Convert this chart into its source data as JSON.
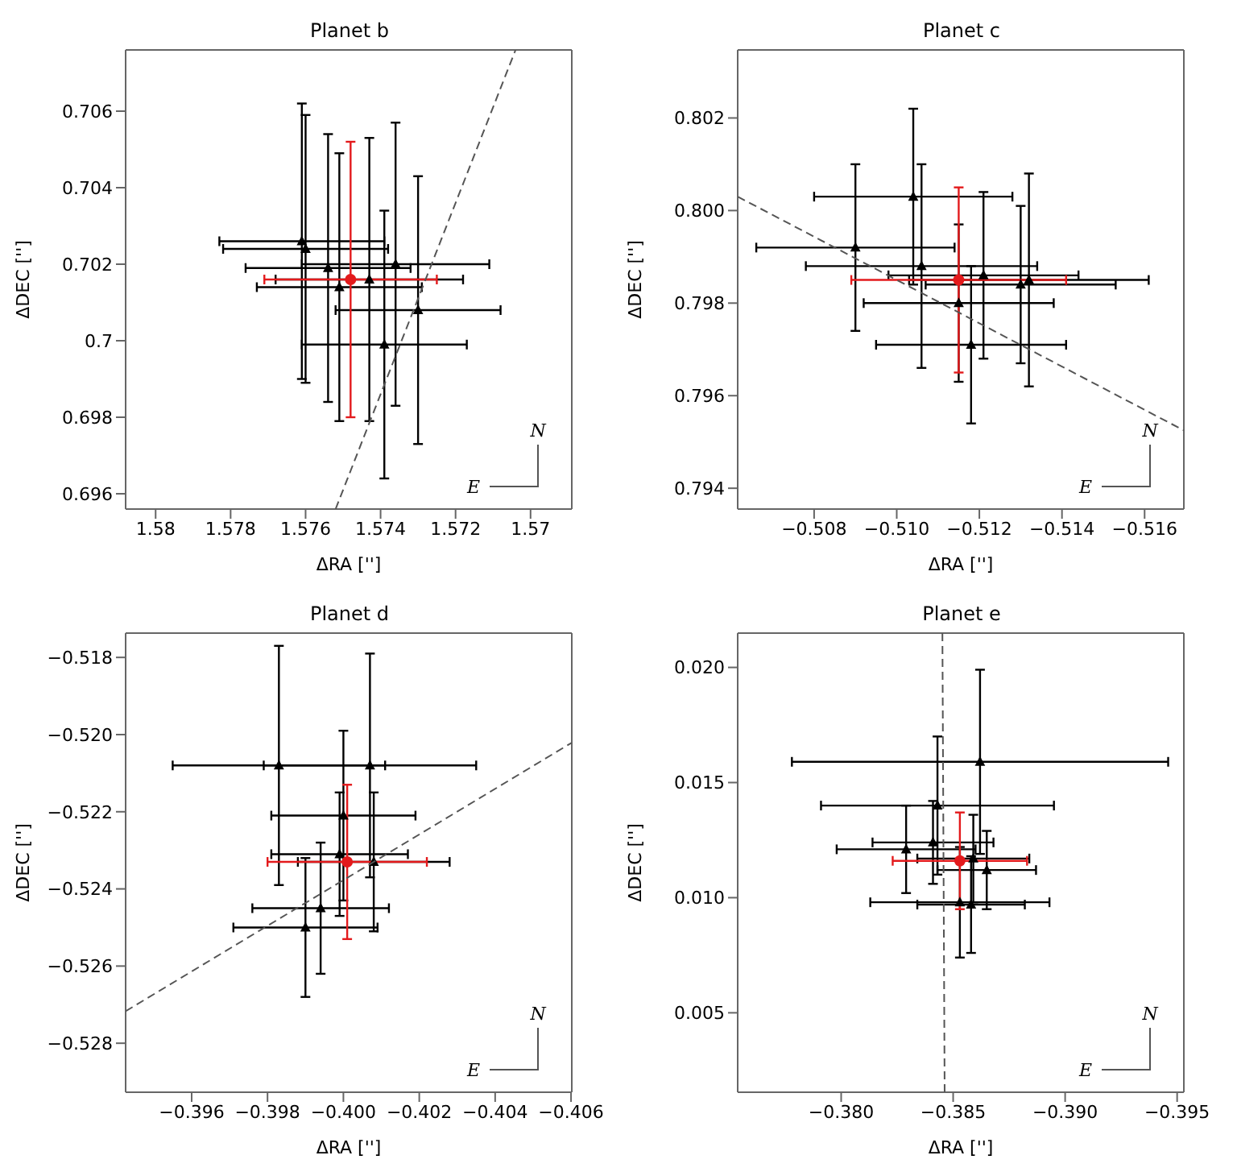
{
  "chart_data": [
    {
      "type": "scatter",
      "title": "Planet b",
      "xlabel": "ΔRA ['']",
      "ylabel": "ΔDEC ['']",
      "xlim": [
        1.5808,
        1.5689
      ],
      "ylim": [
        0.6956,
        0.7076
      ],
      "xticks": [
        1.58,
        1.578,
        1.576,
        1.574,
        1.572,
        1.57
      ],
      "yticks": [
        0.696,
        0.698,
        0.7,
        0.702,
        0.704,
        0.706
      ],
      "grid": false,
      "legend": false,
      "annotations": [
        "N",
        "E"
      ],
      "series": [
        {
          "type": "scatter",
          "color": "#000000",
          "marker": "triangle",
          "x": [
            1.5761,
            1.576,
            1.5754,
            1.5743,
            1.5751,
            1.5736,
            1.573,
            1.5739
          ],
          "values": [
            0.7026,
            0.7024,
            0.7019,
            0.7016,
            0.7014,
            0.702,
            0.7008,
            0.6999
          ],
          "xerrors": [
            0.0022,
            0.0022,
            0.0022,
            0.0025,
            0.0022,
            0.0025,
            0.0022,
            0.0022
          ],
          "errors": [
            0.0036,
            0.0035,
            0.0035,
            0.0037,
            0.0035,
            0.0037,
            0.0035,
            0.0035
          ]
        },
        {
          "type": "scatter",
          "color": "#e31a1c",
          "marker": "circle",
          "x": [
            1.5748
          ],
          "values": [
            0.7016
          ],
          "xerrors": [
            0.0023
          ],
          "errors": [
            0.0036
          ]
        },
        {
          "type": "line",
          "color": "#555555",
          "line_style": "dashed",
          "x": [
            1.5752,
            1.5704
          ],
          "values": [
            0.6956,
            0.7076
          ]
        }
      ]
    },
    {
      "type": "scatter",
      "title": "Planet c",
      "xlabel": "ΔRA ['']",
      "ylabel": "ΔDEC ['']",
      "xlim": [
        -0.50615,
        -0.51695
      ],
      "ylim": [
        0.79355,
        0.80347
      ],
      "xticks": [
        {
          "value": -0.508,
          "label": "−0.508"
        },
        {
          "value": -0.51,
          "label": "−0.510"
        },
        {
          "value": -0.512,
          "label": "−0.512"
        },
        {
          "value": -0.514,
          "label": "−0.514"
        },
        {
          "value": -0.516,
          "label": "−0.516"
        }
      ],
      "yticks": [
        0.794,
        0.796,
        0.798,
        {
          "value": 0.8,
          "label": "0.800"
        },
        0.802
      ],
      "grid": false,
      "legend": false,
      "annotations": [
        "N",
        "E"
      ],
      "series": [
        {
          "type": "scatter",
          "color": "#000000",
          "marker": "triangle",
          "x": [
            -0.509,
            -0.5104,
            -0.5106,
            -0.5115,
            -0.5118,
            -0.5121,
            -0.5132,
            -0.513
          ],
          "values": [
            0.7992,
            0.8003,
            0.7988,
            0.798,
            0.7971,
            0.7986,
            0.7985,
            0.7984
          ],
          "xerrors": [
            0.0024,
            0.0024,
            0.0028,
            0.0023,
            0.0023,
            0.0023,
            0.0029,
            0.0023
          ],
          "errors": [
            0.0018,
            0.0019,
            0.0022,
            0.0017,
            0.0017,
            0.0018,
            0.0023,
            0.0017
          ]
        },
        {
          "type": "scatter",
          "color": "#e31a1c",
          "marker": "circle",
          "x": [
            -0.5115
          ],
          "values": [
            0.7985
          ],
          "xerrors": [
            0.0026
          ],
          "errors": [
            0.002
          ]
        },
        {
          "type": "line",
          "color": "#555555",
          "line_style": "dashed",
          "x": [
            -0.50615,
            -0.51695
          ],
          "values": [
            0.8003,
            0.79525
          ]
        }
      ]
    },
    {
      "type": "scatter",
      "title": "Planet d",
      "xlabel": "ΔRA ['']",
      "ylabel": "ΔDEC ['']",
      "xlim": [
        -0.39426,
        -0.40602
      ],
      "ylim": [
        -0.52927,
        -0.51737
      ],
      "xticks": [
        {
          "value": -0.396,
          "label": "−0.396"
        },
        {
          "value": -0.398,
          "label": "−0.398"
        },
        {
          "value": -0.4,
          "label": "−0.400"
        },
        {
          "value": -0.402,
          "label": "−0.402"
        },
        {
          "value": -0.404,
          "label": "−0.404"
        },
        {
          "value": -0.406,
          "label": "−0.406"
        }
      ],
      "yticks": [
        {
          "value": -0.528,
          "label": "−0.528"
        },
        {
          "value": -0.526,
          "label": "−0.526"
        },
        {
          "value": -0.524,
          "label": "−0.524"
        },
        {
          "value": -0.522,
          "label": "−0.522"
        },
        {
          "value": -0.52,
          "label": "−0.520"
        },
        {
          "value": -0.518,
          "label": "−0.518"
        }
      ],
      "grid": false,
      "legend": false,
      "annotations": [
        "N",
        "E"
      ],
      "series": [
        {
          "type": "scatter",
          "color": "#000000",
          "marker": "triangle",
          "x": [
            -0.3983,
            -0.4007,
            -0.4,
            -0.3999,
            -0.4008,
            -0.3994,
            -0.399
          ],
          "values": [
            -0.5208,
            -0.5208,
            -0.5221,
            -0.5231,
            -0.5233,
            -0.5245,
            -0.525
          ],
          "xerrors": [
            0.0028,
            0.0028,
            0.0019,
            0.0018,
            0.002,
            0.0018,
            0.0019
          ],
          "errors": [
            0.0031,
            0.0029,
            0.0022,
            0.0016,
            0.0018,
            0.0017,
            0.0018
          ]
        },
        {
          "type": "scatter",
          "color": "#e31a1c",
          "marker": "circle",
          "x": [
            -0.4001
          ],
          "values": [
            -0.5233
          ],
          "xerrors": [
            0.0021
          ],
          "errors": [
            0.002
          ]
        },
        {
          "type": "line",
          "color": "#555555",
          "line_style": "dashed",
          "x": [
            -0.39426,
            -0.40602
          ],
          "values": [
            -0.52717,
            -0.52021
          ]
        }
      ]
    },
    {
      "type": "scatter",
      "title": "Planet e",
      "xlabel": "ΔRA ['']",
      "ylabel": "ΔDEC ['']",
      "xlim": [
        -0.37538,
        -0.3953
      ],
      "ylim": [
        0.00155,
        0.02149
      ],
      "xticks": [
        {
          "value": -0.38,
          "label": "−0.380"
        },
        {
          "value": -0.385,
          "label": "−0.385"
        },
        {
          "value": -0.39,
          "label": "−0.390"
        },
        {
          "value": -0.395,
          "label": "−0.395"
        }
      ],
      "yticks": [
        0.005,
        {
          "value": 0.01,
          "label": "0.010"
        },
        0.015,
        {
          "value": 0.02,
          "label": "0.020"
        }
      ],
      "grid": false,
      "legend": false,
      "annotations": [
        "N",
        "E"
      ],
      "series": [
        {
          "type": "scatter",
          "color": "#000000",
          "marker": "triangle",
          "x": [
            -0.3862,
            -0.3843,
            -0.3841,
            -0.3829,
            -0.3859,
            -0.3865,
            -0.3853,
            -0.3858
          ],
          "values": [
            0.0159,
            0.014,
            0.0124,
            0.0121,
            0.0117,
            0.0112,
            0.0098,
            0.0097
          ],
          "xerrors": [
            0.0084,
            0.0052,
            0.0027,
            0.0031,
            0.0025,
            0.0022,
            0.004,
            0.0024
          ],
          "errors": [
            0.004,
            0.003,
            0.0018,
            0.0019,
            0.0019,
            0.0017,
            0.0024,
            0.0021
          ]
        },
        {
          "type": "scatter",
          "color": "#e31a1c",
          "marker": "circle",
          "x": [
            -0.3853
          ],
          "values": [
            0.0116
          ],
          "xerrors": [
            0.003
          ],
          "errors": [
            0.0021
          ]
        },
        {
          "type": "line",
          "color": "#555555",
          "line_style": "dashed",
          "x": [
            -0.38452,
            -0.38462
          ],
          "values": [
            0.02149,
            0.00155
          ]
        }
      ]
    }
  ]
}
